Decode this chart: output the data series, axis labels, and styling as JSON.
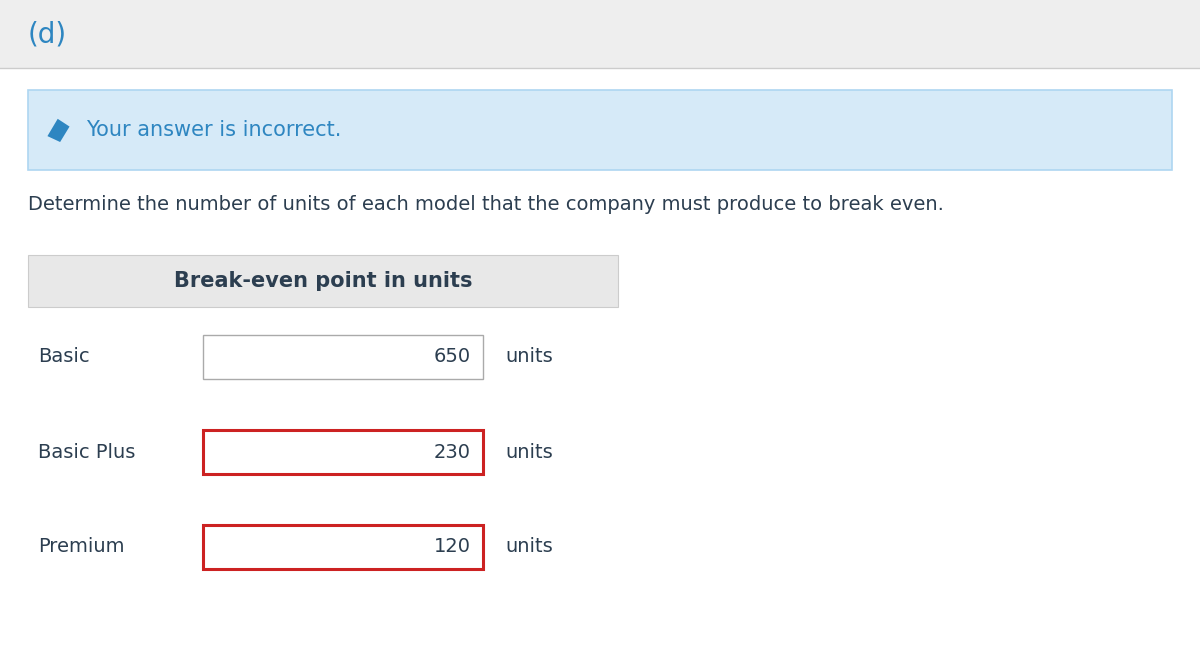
{
  "title_label": "(d)",
  "title_color": "#2e86c1",
  "alert_text": "Your answer is incorrect.",
  "alert_text_color": "#2e86c1",
  "alert_bg": "#d6eaf8",
  "alert_border": "#aed6f1",
  "question_text": "Determine the number of units of each model that the company must produce to break even.",
  "question_text_color": "#2c3e50",
  "table_header": "Break-even point in units",
  "table_header_bg": "#e8e8e8",
  "table_text_color": "#2c3e50",
  "rows": [
    {
      "label": "Basic",
      "value": "650",
      "border_color": "#aaaaaa",
      "border_width": 1.0
    },
    {
      "label": "Basic Plus",
      "value": "230",
      "border_color": "#cc2222",
      "border_width": 2.2
    },
    {
      "label": "Premium",
      "value": "120",
      "border_color": "#cc2222",
      "border_width": 2.2
    }
  ],
  "units_label": "units",
  "bg_color": "#ffffff",
  "top_bar_bg": "#eeeeee",
  "separator_color": "#cccccc",
  "icon_color": "#2e86c1"
}
